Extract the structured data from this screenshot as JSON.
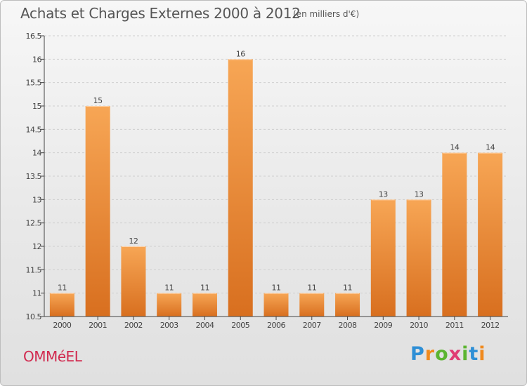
{
  "title": "Achats et Charges Externes 2000 à 2012",
  "subtitle": "(en milliers d'€)",
  "town": "OMMéEL",
  "logo": {
    "text": "Proxiti",
    "letter_colors": [
      "#2e8fd6",
      "#f08a1e",
      "#5cb531",
      "#e03d73",
      "#5cb531",
      "#2e8fd6",
      "#f08a1e"
    ]
  },
  "colors": {
    "bar_light": "#f7a655",
    "bar_dark": "#d86f1f",
    "axis": "#444444",
    "grid": "#cfcfcf",
    "text": "#444444"
  },
  "chart_data": {
    "type": "bar",
    "categories": [
      "2000",
      "2001",
      "2002",
      "2003",
      "2004",
      "2005",
      "2006",
      "2007",
      "2008",
      "2009",
      "2010",
      "2011",
      "2012"
    ],
    "values": [
      11,
      15,
      12,
      11,
      11,
      16,
      11,
      11,
      11,
      13,
      13,
      14,
      14
    ],
    "data_labels": [
      "11",
      "15",
      "12",
      "11",
      "11",
      "16",
      "11",
      "11",
      "11",
      "13",
      "13",
      "14",
      "14"
    ],
    "yticks": [
      "10.5",
      "11",
      "11.5",
      "12",
      "12.5",
      "13",
      "13.5",
      "14",
      "14.5",
      "15",
      "15.5",
      "16",
      "16.5"
    ],
    "ylim": [
      10.5,
      16.5
    ],
    "grid": true,
    "title": "Achats et Charges Externes 2000 à 2012",
    "xlabel": "",
    "ylabel": ""
  }
}
